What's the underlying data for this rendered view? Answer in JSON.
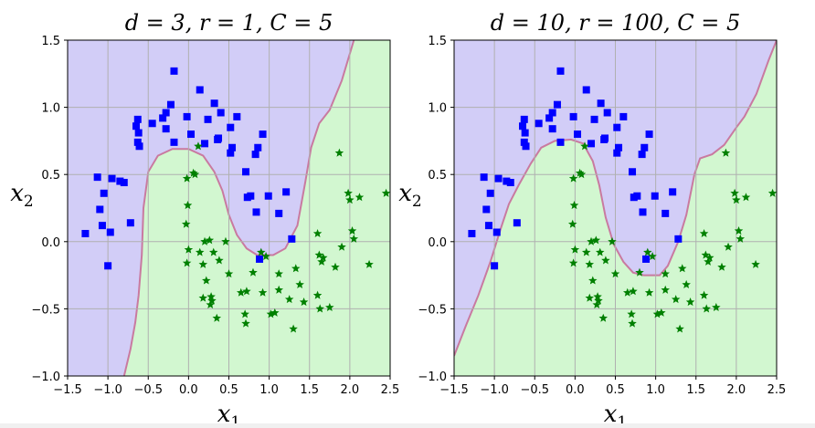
{
  "chart_data": [
    {
      "type": "scatter",
      "title": "d = 3, r = 1, C = 5",
      "title_parts": {
        "d": "3",
        "r": "1",
        "C": "5"
      },
      "xlabel": "x1",
      "ylabel": "x2",
      "xlim": [
        -1.5,
        2.5
      ],
      "ylim": [
        -1.0,
        1.5
      ],
      "xticks": [
        "−1.5",
        "−1.0",
        "−0.5",
        "0.0",
        "0.5",
        "1.0",
        "1.5",
        "2.0",
        "2.5"
      ],
      "yticks": [
        "−1.0",
        "−0.5",
        "0.0",
        "0.5",
        "1.0",
        "1.5"
      ],
      "grid": true,
      "background_regions": {
        "class0_color": "#d2cdf7",
        "class1_color": "#d2f7d0",
        "boundary_color": "#c97aa0"
      },
      "decision_boundary": [
        [
          -0.8,
          -1.0
        ],
        [
          -0.72,
          -0.8
        ],
        [
          -0.66,
          -0.6
        ],
        [
          -0.62,
          -0.4
        ],
        [
          -0.58,
          -0.1
        ],
        [
          -0.56,
          0.25
        ],
        [
          -0.5,
          0.52
        ],
        [
          -0.38,
          0.64
        ],
        [
          -0.2,
          0.69
        ],
        [
          0.0,
          0.69
        ],
        [
          0.18,
          0.64
        ],
        [
          0.32,
          0.52
        ],
        [
          0.42,
          0.38
        ],
        [
          0.5,
          0.2
        ],
        [
          0.6,
          0.05
        ],
        [
          0.72,
          -0.05
        ],
        [
          0.85,
          -0.1
        ],
        [
          1.05,
          -0.1
        ],
        [
          1.2,
          -0.05
        ],
        [
          1.35,
          0.12
        ],
        [
          1.45,
          0.45
        ],
        [
          1.52,
          0.7
        ],
        [
          1.62,
          0.88
        ],
        [
          1.75,
          0.98
        ],
        [
          1.9,
          1.2
        ],
        [
          2.05,
          1.5
        ]
      ],
      "series": [
        {
          "marker": "s",
          "color": "#0000ff",
          "points": [
            [
              -1.28,
              0.06
            ],
            [
              -1.13,
              0.48
            ],
            [
              -1.1,
              0.24
            ],
            [
              -1.07,
              0.12
            ],
            [
              -1.05,
              0.36
            ],
            [
              -1.0,
              -0.18
            ],
            [
              -0.97,
              0.07
            ],
            [
              -0.95,
              0.47
            ],
            [
              -0.85,
              0.45
            ],
            [
              -0.8,
              0.44
            ],
            [
              -0.72,
              0.14
            ],
            [
              -0.65,
              0.86
            ],
            [
              -0.63,
              0.91
            ],
            [
              -0.63,
              0.74
            ],
            [
              -0.62,
              0.81
            ],
            [
              -0.61,
              0.71
            ],
            [
              -0.45,
              0.88
            ],
            [
              -0.32,
              0.92
            ],
            [
              -0.28,
              0.96
            ],
            [
              -0.28,
              0.84
            ],
            [
              -0.22,
              1.02
            ],
            [
              -0.18,
              1.27
            ],
            [
              -0.18,
              0.74
            ],
            [
              -0.02,
              0.93
            ],
            [
              0.03,
              0.8
            ],
            [
              0.14,
              1.13
            ],
            [
              0.2,
              0.73
            ],
            [
              0.24,
              0.91
            ],
            [
              0.32,
              1.03
            ],
            [
              0.36,
              0.76
            ],
            [
              0.37,
              0.77
            ],
            [
              0.4,
              0.96
            ],
            [
              0.52,
              0.66
            ],
            [
              0.52,
              0.85
            ],
            [
              0.54,
              0.7
            ],
            [
              0.6,
              0.93
            ],
            [
              0.71,
              0.52
            ],
            [
              0.73,
              0.33
            ],
            [
              0.77,
              0.34
            ],
            [
              0.83,
              0.65
            ],
            [
              0.84,
              0.22
            ],
            [
              0.86,
              0.7
            ],
            [
              0.88,
              -0.13
            ],
            [
              0.92,
              0.8
            ],
            [
              0.99,
              0.34
            ],
            [
              1.12,
              0.21
            ],
            [
              1.21,
              0.37
            ],
            [
              1.28,
              0.02
            ]
          ]
        },
        {
          "marker": "*",
          "color": "#008000",
          "points": [
            [
              0.12,
              0.71
            ],
            [
              -0.02,
              0.47
            ],
            [
              -0.01,
              0.27
            ],
            [
              -0.03,
              0.13
            ],
            [
              0.0,
              -0.06
            ],
            [
              -0.02,
              -0.16
            ],
            [
              0.06,
              0.51
            ],
            [
              0.08,
              0.5
            ],
            [
              0.14,
              -0.08
            ],
            [
              0.18,
              -0.17
            ],
            [
              0.2,
              0.0
            ],
            [
              0.22,
              -0.29
            ],
            [
              0.26,
              0.01
            ],
            [
              0.18,
              -0.42
            ],
            [
              0.27,
              -0.47
            ],
            [
              0.29,
              -0.44
            ],
            [
              0.28,
              -0.41
            ],
            [
              0.31,
              -0.08
            ],
            [
              0.35,
              -0.57
            ],
            [
              0.38,
              -0.14
            ],
            [
              0.46,
              0.0
            ],
            [
              0.5,
              -0.24
            ],
            [
              0.65,
              -0.38
            ],
            [
              0.7,
              -0.54
            ],
            [
              0.71,
              -0.61
            ],
            [
              0.72,
              -0.37
            ],
            [
              0.8,
              -0.23
            ],
            [
              0.9,
              -0.08
            ],
            [
              0.92,
              -0.38
            ],
            [
              0.96,
              -0.11
            ],
            [
              1.02,
              -0.54
            ],
            [
              1.07,
              -0.53
            ],
            [
              1.12,
              -0.36
            ],
            [
              1.12,
              -0.24
            ],
            [
              1.25,
              -0.43
            ],
            [
              1.3,
              -0.65
            ],
            [
              1.33,
              -0.2
            ],
            [
              1.38,
              -0.32
            ],
            [
              1.43,
              -0.45
            ],
            [
              1.6,
              0.06
            ],
            [
              1.6,
              -0.4
            ],
            [
              1.62,
              -0.1
            ],
            [
              1.63,
              -0.5
            ],
            [
              1.65,
              -0.15
            ],
            [
              1.67,
              -0.12
            ],
            [
              1.75,
              -0.49
            ],
            [
              1.82,
              -0.19
            ],
            [
              1.87,
              0.66
            ],
            [
              1.9,
              -0.04
            ],
            [
              1.98,
              0.36
            ],
            [
              2.0,
              0.31
            ],
            [
              2.03,
              0.08
            ],
            [
              2.05,
              0.02
            ],
            [
              2.12,
              0.33
            ],
            [
              2.24,
              -0.17
            ],
            [
              2.45,
              0.36
            ]
          ]
        }
      ]
    },
    {
      "type": "scatter",
      "title": "d = 10, r = 100, C = 5",
      "title_parts": {
        "d": "10",
        "r": "100",
        "C": "5"
      },
      "xlabel": "x1",
      "ylabel": "x2",
      "xlim": [
        -1.5,
        2.5
      ],
      "ylim": [
        -1.0,
        1.5
      ],
      "xticks": [
        "−1.5",
        "−1.0",
        "−0.5",
        "0.0",
        "0.5",
        "1.0",
        "1.5",
        "2.0",
        "2.5"
      ],
      "yticks": [
        "−1.0",
        "−0.5",
        "0.0",
        "0.5",
        "1.0",
        "1.5"
      ],
      "grid": true,
      "background_regions": {
        "class0_color": "#d2cdf7",
        "class1_color": "#d2f7d0",
        "boundary_color": "#c97aa0"
      },
      "decision_boundary": [
        [
          -1.5,
          -0.85
        ],
        [
          -1.35,
          -0.62
        ],
        [
          -1.2,
          -0.4
        ],
        [
          -1.05,
          -0.15
        ],
        [
          -0.92,
          0.1
        ],
        [
          -0.82,
          0.28
        ],
        [
          -0.7,
          0.42
        ],
        [
          -0.55,
          0.58
        ],
        [
          -0.42,
          0.7
        ],
        [
          -0.25,
          0.75
        ],
        [
          -0.05,
          0.76
        ],
        [
          0.1,
          0.73
        ],
        [
          0.22,
          0.6
        ],
        [
          0.3,
          0.42
        ],
        [
          0.38,
          0.18
        ],
        [
          0.48,
          -0.02
        ],
        [
          0.6,
          -0.15
        ],
        [
          0.72,
          -0.23
        ],
        [
          0.85,
          -0.25
        ],
        [
          1.05,
          -0.25
        ],
        [
          1.15,
          -0.18
        ],
        [
          1.28,
          0.0
        ],
        [
          1.38,
          0.2
        ],
        [
          1.48,
          0.5
        ],
        [
          1.55,
          0.62
        ],
        [
          1.7,
          0.65
        ],
        [
          1.85,
          0.72
        ],
        [
          2.0,
          0.85
        ],
        [
          2.1,
          0.93
        ],
        [
          2.25,
          1.1
        ],
        [
          2.4,
          1.35
        ],
        [
          2.5,
          1.5
        ]
      ],
      "series": [
        {
          "marker": "s",
          "color": "#0000ff",
          "points": [
            [
              -1.28,
              0.06
            ],
            [
              -1.13,
              0.48
            ],
            [
              -1.1,
              0.24
            ],
            [
              -1.07,
              0.12
            ],
            [
              -1.05,
              0.36
            ],
            [
              -1.0,
              -0.18
            ],
            [
              -0.97,
              0.07
            ],
            [
              -0.95,
              0.47
            ],
            [
              -0.85,
              0.45
            ],
            [
              -0.8,
              0.44
            ],
            [
              -0.72,
              0.14
            ],
            [
              -0.65,
              0.86
            ],
            [
              -0.63,
              0.91
            ],
            [
              -0.63,
              0.74
            ],
            [
              -0.62,
              0.81
            ],
            [
              -0.61,
              0.71
            ],
            [
              -0.45,
              0.88
            ],
            [
              -0.32,
              0.92
            ],
            [
              -0.28,
              0.96
            ],
            [
              -0.28,
              0.84
            ],
            [
              -0.22,
              1.02
            ],
            [
              -0.18,
              1.27
            ],
            [
              -0.18,
              0.74
            ],
            [
              -0.02,
              0.93
            ],
            [
              0.03,
              0.8
            ],
            [
              0.14,
              1.13
            ],
            [
              0.2,
              0.73
            ],
            [
              0.24,
              0.91
            ],
            [
              0.32,
              1.03
            ],
            [
              0.36,
              0.76
            ],
            [
              0.37,
              0.77
            ],
            [
              0.4,
              0.96
            ],
            [
              0.52,
              0.66
            ],
            [
              0.52,
              0.85
            ],
            [
              0.54,
              0.7
            ],
            [
              0.6,
              0.93
            ],
            [
              0.71,
              0.52
            ],
            [
              0.73,
              0.33
            ],
            [
              0.77,
              0.34
            ],
            [
              0.83,
              0.65
            ],
            [
              0.84,
              0.22
            ],
            [
              0.86,
              0.7
            ],
            [
              0.88,
              -0.13
            ],
            [
              0.92,
              0.8
            ],
            [
              0.99,
              0.34
            ],
            [
              1.12,
              0.21
            ],
            [
              1.21,
              0.37
            ],
            [
              1.28,
              0.02
            ]
          ]
        },
        {
          "marker": "*",
          "color": "#008000",
          "points": [
            [
              0.12,
              0.71
            ],
            [
              -0.02,
              0.47
            ],
            [
              -0.01,
              0.27
            ],
            [
              -0.03,
              0.13
            ],
            [
              0.0,
              -0.06
            ],
            [
              -0.02,
              -0.16
            ],
            [
              0.06,
              0.51
            ],
            [
              0.08,
              0.5
            ],
            [
              0.14,
              -0.08
            ],
            [
              0.18,
              -0.17
            ],
            [
              0.2,
              0.0
            ],
            [
              0.22,
              -0.29
            ],
            [
              0.26,
              0.01
            ],
            [
              0.18,
              -0.42
            ],
            [
              0.27,
              -0.47
            ],
            [
              0.29,
              -0.44
            ],
            [
              0.28,
              -0.41
            ],
            [
              0.31,
              -0.08
            ],
            [
              0.35,
              -0.57
            ],
            [
              0.38,
              -0.14
            ],
            [
              0.46,
              0.0
            ],
            [
              0.5,
              -0.24
            ],
            [
              0.65,
              -0.38
            ],
            [
              0.7,
              -0.54
            ],
            [
              0.71,
              -0.61
            ],
            [
              0.72,
              -0.37
            ],
            [
              0.8,
              -0.23
            ],
            [
              0.9,
              -0.08
            ],
            [
              0.92,
              -0.38
            ],
            [
              0.96,
              -0.11
            ],
            [
              1.02,
              -0.54
            ],
            [
              1.07,
              -0.53
            ],
            [
              1.12,
              -0.36
            ],
            [
              1.12,
              -0.24
            ],
            [
              1.25,
              -0.43
            ],
            [
              1.3,
              -0.65
            ],
            [
              1.33,
              -0.2
            ],
            [
              1.38,
              -0.32
            ],
            [
              1.43,
              -0.45
            ],
            [
              1.6,
              0.06
            ],
            [
              1.6,
              -0.4
            ],
            [
              1.62,
              -0.1
            ],
            [
              1.63,
              -0.5
            ],
            [
              1.65,
              -0.15
            ],
            [
              1.67,
              -0.12
            ],
            [
              1.75,
              -0.49
            ],
            [
              1.82,
              -0.19
            ],
            [
              1.87,
              0.66
            ],
            [
              1.9,
              -0.04
            ],
            [
              1.98,
              0.36
            ],
            [
              2.0,
              0.31
            ],
            [
              2.03,
              0.08
            ],
            [
              2.05,
              0.02
            ],
            [
              2.12,
              0.33
            ],
            [
              2.24,
              -0.17
            ],
            [
              2.45,
              0.36
            ]
          ]
        }
      ]
    }
  ]
}
